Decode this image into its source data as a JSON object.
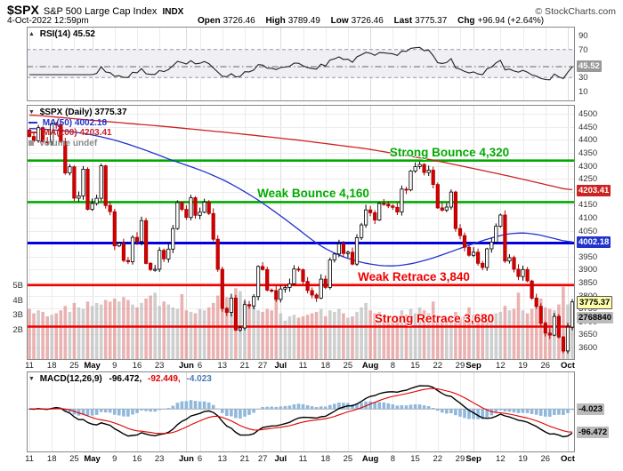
{
  "colors": {
    "candle_up_fill": "#ffffff",
    "candle_up_stroke": "#000000",
    "candle_down_fill": "#d40000",
    "candle_down_stroke": "#aa0000",
    "ma50": "#2233cc",
    "ma200": "#cc2222",
    "volume_up": "#b5b5b5",
    "volume_down": "#e08888",
    "rsi_line": "#222222",
    "macd_line": "#000000",
    "macd_signal": "#dd0000",
    "macd_hist": "#8fb8dc",
    "grid": "#ececec",
    "grid_month": "#dcdcdc",
    "panel_border": "#888888"
  },
  "header": {
    "symbol": "$SPX",
    "name": "S&P 500 Large Cap Index",
    "exchange": "INDX",
    "credit": "© StockCharts.com",
    "datetime": "4-Oct-2022 12:59pm",
    "quote": {
      "open_label": "Open",
      "open": "3726.46",
      "high_label": "High",
      "high": "3789.49",
      "low_label": "Low",
      "low": "3726.46",
      "last_label": "Last",
      "last": "3775.37",
      "chg_label": "Chg",
      "chg": "+96.94 (+2.64%)"
    }
  },
  "rsi_panel": {
    "toggle_icon": "▲",
    "legend": "RSI(14) 45.52",
    "axis": [
      90,
      70,
      30,
      10
    ],
    "overbought": 70,
    "oversold": 30,
    "last": 45.52,
    "box": {
      "name": "rsi-value-box",
      "text": "45.52",
      "value": 45.52,
      "bg": "#999999",
      "fg": "#ffffff"
    }
  },
  "main_panel": {
    "toggle_icon": "▼",
    "legend_symbol": "$SPX (Daily) 3775.37",
    "legend_ma50": "MA(50) 4002.18",
    "legend_ma200": "MA(200) 4203.41",
    "legend_volume": "Volume undef",
    "price_ticks": [
      4500,
      4450,
      4400,
      4350,
      4300,
      4250,
      4200,
      4150,
      4100,
      4050,
      4000,
      3950,
      3900,
      3850,
      3800,
      3750,
      3700,
      3650,
      3600
    ],
    "volume_ticks": [
      {
        "label": "5B",
        "v": 5
      },
      {
        "label": "4B",
        "v": 4
      },
      {
        "label": "3B",
        "v": 3
      },
      {
        "label": "2B",
        "v": 2
      }
    ],
    "boxes": [
      {
        "name": "ma200-value-box",
        "text": "4203.41",
        "value": 4203.41,
        "bg": "#cc2222",
        "fg": "#ffffff"
      },
      {
        "name": "ma50-value-box",
        "text": "4002.18",
        "value": 4002.18,
        "bg": "#2233cc",
        "fg": "#ffffff"
      },
      {
        "name": "last-price-box",
        "text": "3775.37",
        "value": 3775.37,
        "bg": "#ffffaa",
        "fg": "#000000",
        "border": "#555555"
      },
      {
        "name": "last-volume-box",
        "text": "2768840",
        "volume": 2.77,
        "bg": "#bbbbbb",
        "fg": "#000000"
      }
    ]
  },
  "macd_panel": {
    "toggle_icon": "▼",
    "title": "MACD(12,26,9)",
    "macd_value": "-96.472,",
    "signal_value": "-92.449,",
    "hist_value": "-4.023",
    "boxes": [
      {
        "name": "macd-hist-box",
        "text": "-4.023",
        "value": -4.023,
        "bg": "#bbbbbb",
        "fg": "#000000"
      },
      {
        "name": "macd-value-box",
        "text": "-96.472",
        "value": -96.472,
        "bg": "#bbbbbb",
        "fg": "#000000"
      }
    ]
  },
  "chart_data": {
    "type": "candlestick",
    "title": "$SPX S&P 500 Large Cap Index (Daily)",
    "date_range": "11-Apr-2022 to 4-Oct-2022",
    "ohlc_last": {
      "open": 3726.46,
      "high": 3789.49,
      "low": 3726.46,
      "close": 3775.37,
      "change": "+96.94 (+2.64%)"
    },
    "ylim": [
      3555,
      4535
    ],
    "prev_close": 4438,
    "closes": [
      4413,
      4397,
      4447,
      4393,
      4392,
      4462,
      4459,
      4393,
      4272,
      4296,
      4175,
      4184,
      4287,
      4132,
      4155,
      4175,
      4300,
      4147,
      4123,
      3991,
      4001,
      3935,
      3930,
      4024,
      4008,
      4089,
      3924,
      3900,
      3901,
      3974,
      3941,
      3979,
      4058,
      4158,
      4132,
      4101,
      4177,
      4109,
      4121,
      4160,
      4116,
      4017,
      3901,
      3750,
      3735,
      3790,
      3667,
      3675,
      3765,
      3760,
      3796,
      3912,
      3900,
      3821,
      3819,
      3785,
      3825,
      3831,
      3845,
      3902,
      3899,
      3854,
      3819,
      3802,
      3790,
      3863,
      3831,
      3937,
      3960,
      3999,
      3962,
      3967,
      3921,
      4023,
      4072,
      4130,
      4119,
      4091,
      4155,
      4152,
      4145,
      4140,
      4122,
      4210,
      4207,
      4280,
      4297,
      4305,
      4274,
      4283,
      4228,
      4138,
      4129,
      4141,
      4199,
      4058,
      4031,
      3986,
      3955,
      3967,
      3924,
      3908,
      3980,
      4006,
      4067,
      4110,
      3933,
      3946,
      3901,
      3873,
      3900,
      3856,
      3790,
      3758,
      3693,
      3655,
      3647,
      3719,
      3640,
      3586,
      3678,
      3775.37
    ],
    "volumes_billions": [
      3.4,
      3.1,
      3.3,
      3.2,
      2.9,
      3.0,
      3.1,
      3.3,
      3.6,
      3.2,
      3.8,
      3.5,
      3.4,
      3.9,
      3.6,
      3.8,
      3.7,
      4.0,
      3.9,
      4.1,
      3.9,
      4.2,
      4.0,
      3.7,
      3.5,
      3.8,
      4.1,
      4.3,
      4.5,
      3.6,
      3.9,
      3.7,
      3.5,
      3.4,
      4.4,
      3.3,
      3.2,
      3.1,
      3.4,
      3.3,
      3.5,
      3.8,
      4.3,
      4.5,
      4.2,
      4.0,
      4.8,
      4.6,
      3.9,
      3.7,
      3.6,
      3.3,
      3.2,
      3.4,
      3.3,
      4.1,
      3.1,
      2.6,
      2.9,
      3.0,
      2.8,
      2.9,
      3.0,
      3.1,
      3.2,
      3.4,
      2.9,
      3.3,
      3.2,
      3.4,
      3.1,
      2.8,
      2.9,
      3.2,
      3.5,
      3.8,
      3.3,
      3.1,
      3.2,
      3.0,
      2.8,
      2.6,
      2.7,
      3.3,
      3.0,
      3.4,
      3.1,
      3.5,
      3.3,
      3.1,
      3.9,
      2.9,
      2.8,
      2.7,
      2.9,
      3.2,
      2.8,
      2.9,
      3.5,
      3.0,
      2.9,
      3.1,
      3.0,
      2.9,
      3.1,
      3.2,
      3.6,
      3.3,
      3.4,
      4.5,
      3.3,
      3.1,
      3.4,
      3.6,
      4.1,
      3.5,
      3.4,
      3.3,
      3.7,
      4.9,
      3.7,
      2.77
    ],
    "ma50_points": [
      [
        0,
        4445
      ],
      [
        8,
        4435
      ],
      [
        14,
        4420
      ],
      [
        20,
        4395
      ],
      [
        26,
        4360
      ],
      [
        32,
        4320
      ],
      [
        38,
        4285
      ],
      [
        44,
        4240
      ],
      [
        50,
        4180
      ],
      [
        55,
        4120
      ],
      [
        60,
        4055
      ],
      [
        64,
        4000
      ],
      [
        68,
        3962
      ],
      [
        72,
        3936
      ],
      [
        76,
        3920
      ],
      [
        80,
        3912
      ],
      [
        84,
        3918
      ],
      [
        88,
        3934
      ],
      [
        92,
        3956
      ],
      [
        96,
        3982
      ],
      [
        100,
        4006
      ],
      [
        104,
        4028
      ],
      [
        108,
        4042
      ],
      [
        112,
        4040
      ],
      [
        116,
        4024
      ],
      [
        121,
        4002.18
      ]
    ],
    "ma200_points": [
      [
        0,
        4497
      ],
      [
        15,
        4474
      ],
      [
        30,
        4452
      ],
      [
        45,
        4427
      ],
      [
        60,
        4399
      ],
      [
        75,
        4366
      ],
      [
        90,
        4322
      ],
      [
        100,
        4286
      ],
      [
        108,
        4256
      ],
      [
        114,
        4232
      ],
      [
        118,
        4216
      ],
      [
        121,
        4203.41
      ]
    ],
    "hlines": [
      {
        "value": 4320,
        "label": "Strong Bounce 4,320",
        "color": "#00aa00",
        "width": 2.6,
        "label_cx": 505
      },
      {
        "value": 4160,
        "label": "Weak Bounce 4,160",
        "color": "#00aa00",
        "width": 2.6,
        "label_cx": 352
      },
      {
        "value": 4002.18,
        "label": "",
        "color": "#0000dd",
        "width": 3
      },
      {
        "value": 3840,
        "label": "Weak Retrace 3,840",
        "color": "#ee0000",
        "width": 2.6,
        "label_cx": 465
      },
      {
        "value": 3680,
        "label": "Strong Retrace 3,680",
        "color": "#ee0000",
        "width": 2.6,
        "label_cx": 488
      }
    ],
    "x_ticks": [
      {
        "label": "11",
        "i": 0
      },
      {
        "label": "18",
        "i": 5
      },
      {
        "label": "25",
        "i": 10
      },
      {
        "label": "May",
        "i": 14,
        "month": true
      },
      {
        "label": "9",
        "i": 19
      },
      {
        "label": "16",
        "i": 24
      },
      {
        "label": "23",
        "i": 29
      },
      {
        "label": "Jun",
        "i": 35,
        "month": true
      },
      {
        "label": "6",
        "i": 38
      },
      {
        "label": "13",
        "i": 43
      },
      {
        "label": "21",
        "i": 48
      },
      {
        "label": "27",
        "i": 52
      },
      {
        "label": "Jul",
        "i": 56,
        "month": true
      },
      {
        "label": "11",
        "i": 61
      },
      {
        "label": "18",
        "i": 66
      },
      {
        "label": "25",
        "i": 71
      },
      {
        "label": "Aug",
        "i": 76,
        "month": true
      },
      {
        "label": "8",
        "i": 81
      },
      {
        "label": "15",
        "i": 86
      },
      {
        "label": "22",
        "i": 91
      },
      {
        "label": "29",
        "i": 96
      },
      {
        "label": "Sep",
        "i": 99,
        "month": true
      },
      {
        "label": "12",
        "i": 105
      },
      {
        "label": "19",
        "i": 110
      },
      {
        "label": "26",
        "i": 115
      },
      {
        "label": "Oct",
        "i": 120,
        "month": true
      }
    ],
    "indicators": {
      "rsi_period": 14,
      "rsi_last": 45.52,
      "macd_params": [
        12,
        26,
        9
      ],
      "macd_last": -96.472,
      "signal_last": -92.449,
      "hist_last": -4.023,
      "ma50_last": 4002.18,
      "ma200_last": 4203.41
    }
  }
}
